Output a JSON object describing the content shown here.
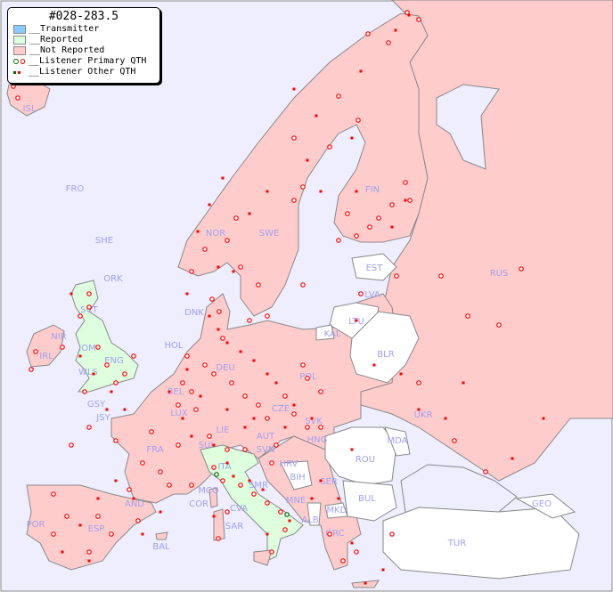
{
  "legend": {
    "title": "#028-283.5",
    "items": [
      {
        "label": "__Transmitter",
        "color": "#88ccff"
      },
      {
        "label": "__Reported",
        "color": "#ddffdd"
      },
      {
        "label": "__Not Reported",
        "color": "#ffcccc"
      },
      {
        "label": "__Listener Primary QTH",
        "colors": [
          "#006600",
          "#ff0000"
        ]
      },
      {
        "label": "__Listener Other QTH",
        "colors": [
          "#006600",
          "#ff0000"
        ]
      }
    ]
  },
  "colors": {
    "sea": "#eeeeff",
    "not_reported": "#ffcccc",
    "reported": "#ddffdd",
    "no_data": "#ffffff",
    "border": "#888888",
    "label": "#a0a0f0",
    "listener": "#ff0000",
    "listener_reported": "#006600"
  },
  "map": {
    "reported_countries": [
      "GBR",
      "ITA"
    ],
    "labels": [
      "ISL",
      "FRO",
      "SHE",
      "ORK",
      "NOR",
      "SWE",
      "FIN",
      "EST",
      "LVA",
      "LTU",
      "KAL",
      "BLR",
      "RUS",
      "DNK",
      "HOL",
      "DEU",
      "POL",
      "BEL",
      "LUX",
      "CZE",
      "SVK",
      "UKR",
      "IRL",
      "SCT",
      "NIR",
      "IOM",
      "WLS",
      "ENG",
      "GSY",
      "JSY",
      "FRA",
      "SUI",
      "LIE",
      "AUT",
      "HNG",
      "MDA",
      "ROU",
      "SVN",
      "HRV",
      "ITA",
      "SMR",
      "BIH",
      "SER",
      "MCO",
      "COR",
      "CVA",
      "MNE",
      "ALB",
      "MKD",
      "BUL",
      "GEO",
      "POR",
      "ESP",
      "AND",
      "SAR",
      "BAL",
      "GRC",
      "TUR"
    ]
  }
}
